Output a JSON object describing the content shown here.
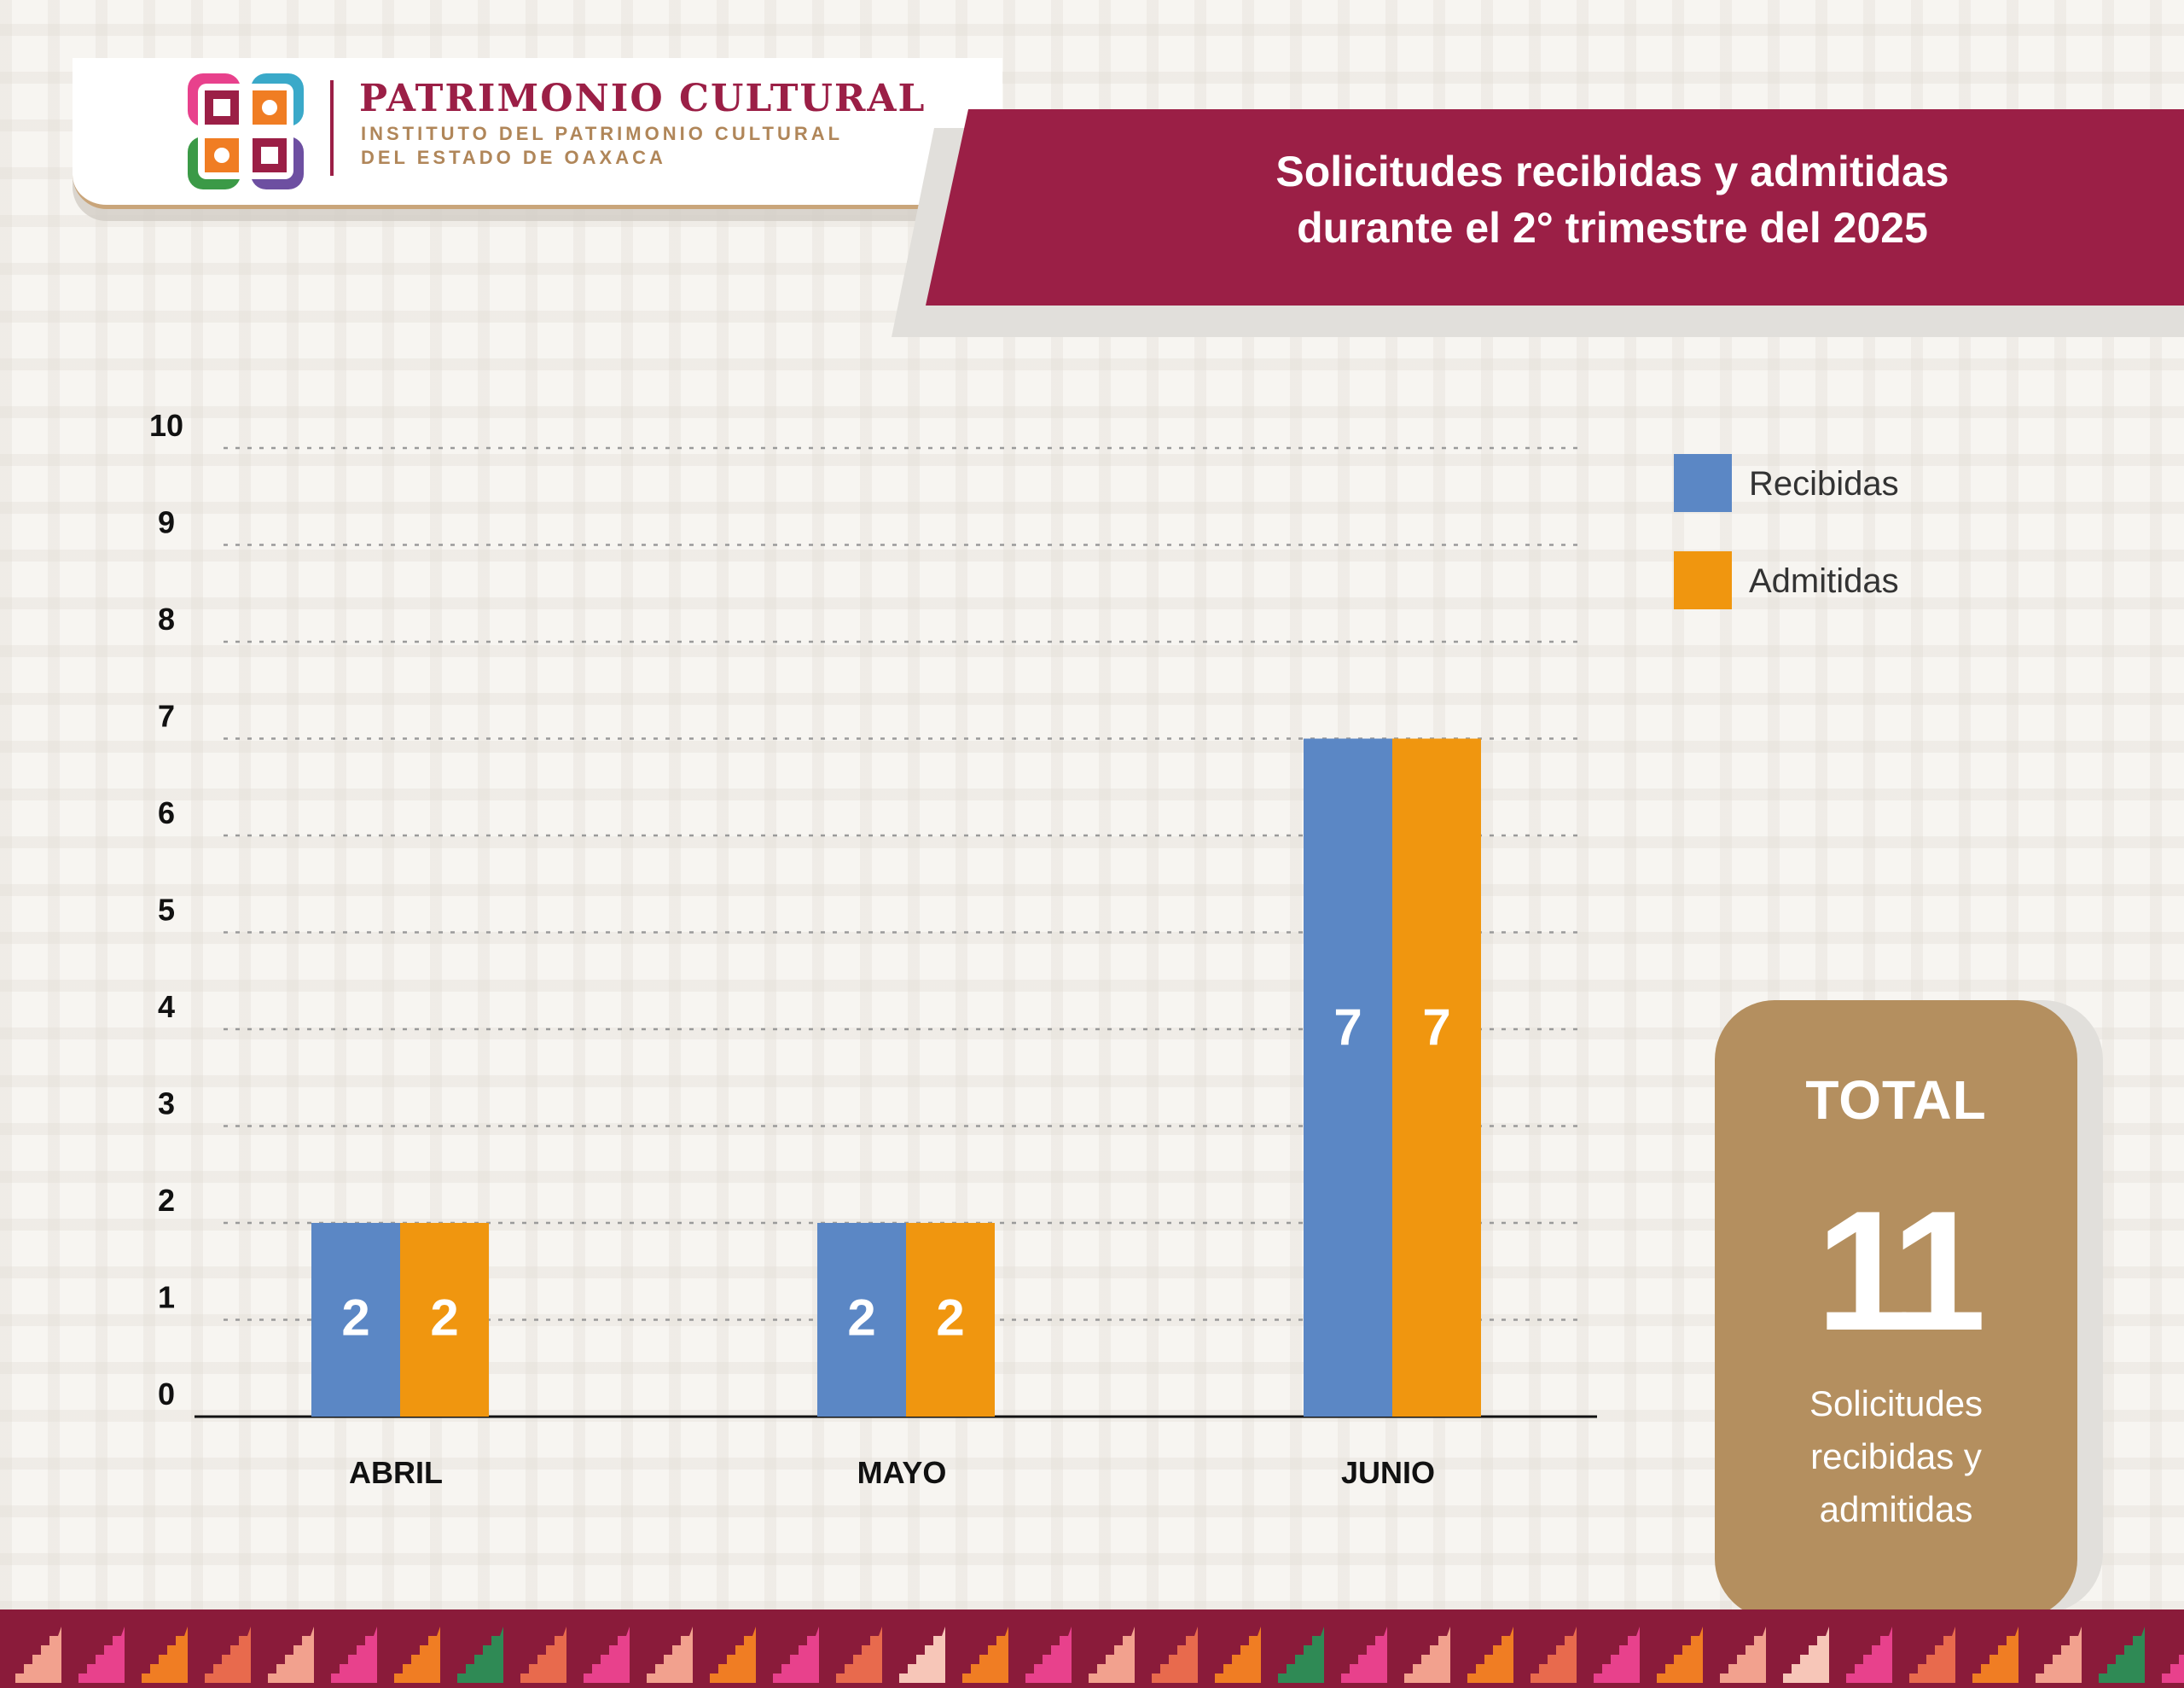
{
  "header": {
    "org_title": "PATRIMONIO CULTURAL",
    "org_subtitle_line1": "INSTITUTO DEL PATRIMONIO CULTURAL",
    "org_subtitle_line2": "DEL ESTADO DE OAXACA",
    "chart_title_line1": "Solicitudes recibidas y admitidas",
    "chart_title_line2": "durante el 2° trimestre del 2025"
  },
  "colors": {
    "brand": "#9b1f46",
    "recibidas": "#5b87c5",
    "admitidas": "#f0960f",
    "total_card": "#b48f5f"
  },
  "chart_data": {
    "type": "bar",
    "title": "Solicitudes recibidas y admitidas durante el 2° trimestre del 2025",
    "categories": [
      "ABRIL",
      "MAYO",
      "JUNIO"
    ],
    "series": [
      {
        "name": "Recibidas",
        "values": [
          2,
          2,
          7
        ]
      },
      {
        "name": "Admitidas",
        "values": [
          2,
          2,
          7
        ]
      }
    ],
    "yticks": [
      "0",
      "1",
      "2",
      "3",
      "4",
      "5",
      "6",
      "7",
      "8",
      "9",
      "10"
    ],
    "ylim": [
      0,
      10
    ],
    "grid": true,
    "data_labels": true,
    "legend_position": "top-right"
  },
  "total": {
    "title": "TOTAL",
    "value": "11",
    "desc_line1": "Solicitudes",
    "desc_line2": "recibidas y",
    "desc_line3": "admitidas"
  }
}
